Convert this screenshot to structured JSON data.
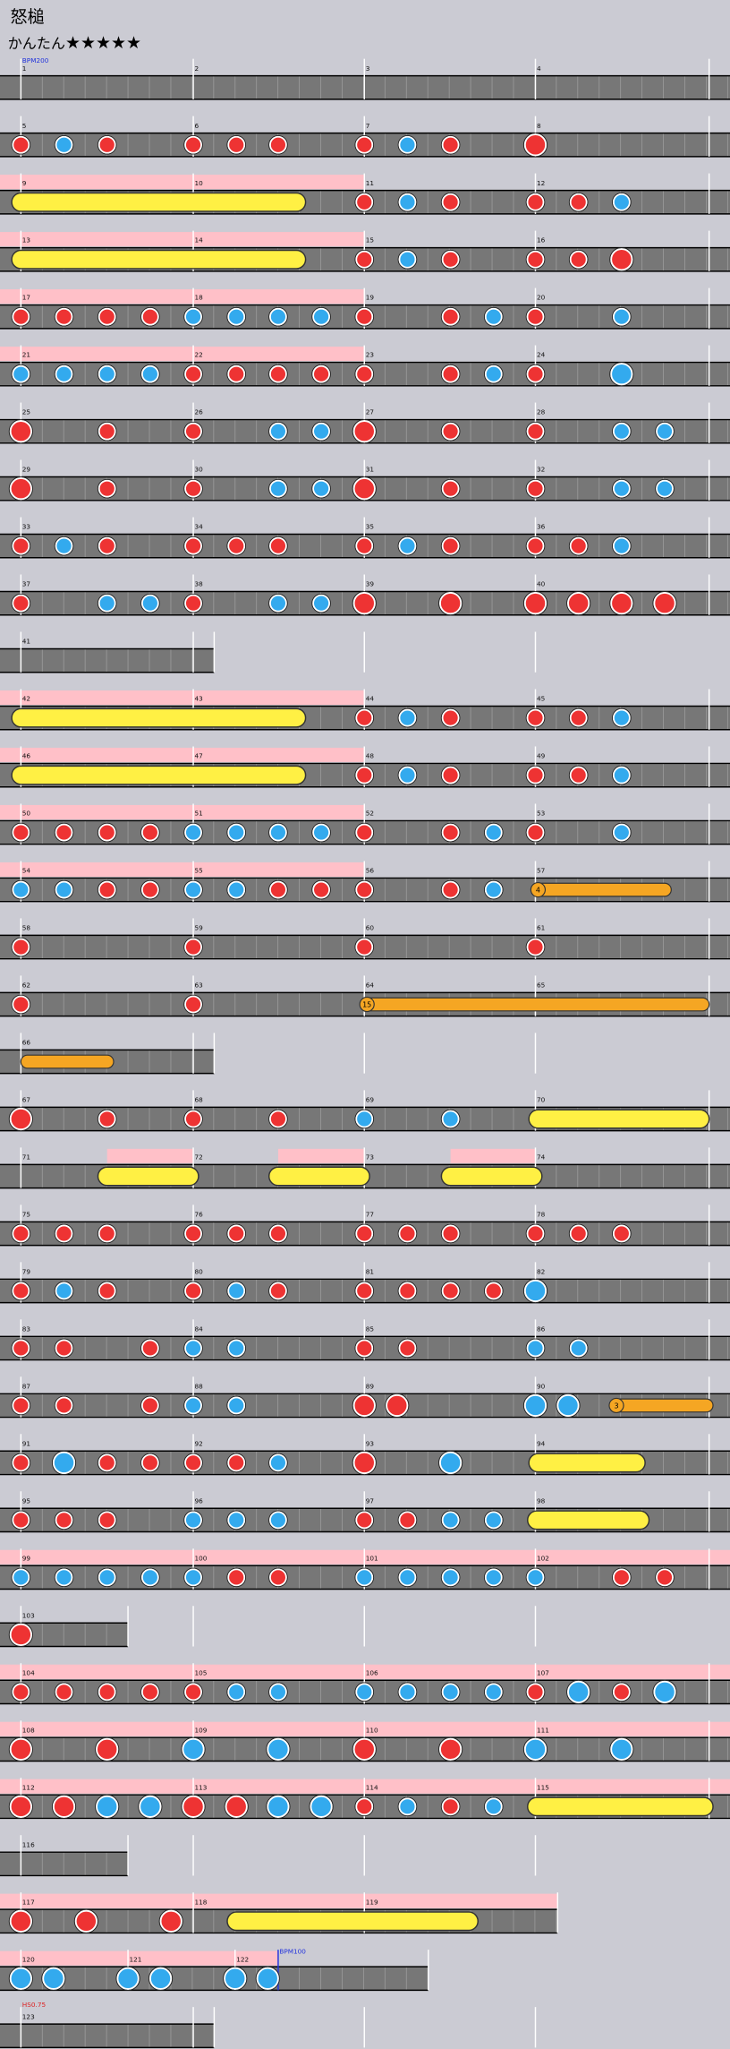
{
  "title": "怒槌",
  "difficulty": "かんたん",
  "stars": "★★★★★",
  "rows": [
    {
      "measures": [
        1,
        2,
        3,
        4
      ],
      "label": "BPM200"
    },
    {
      "measures": [
        5,
        6,
        7,
        8
      ]
    },
    {
      "measures": [
        9,
        10,
        11,
        12
      ]
    },
    {
      "measures": [
        13,
        14,
        15,
        16
      ]
    },
    {
      "measures": [
        17,
        18,
        19,
        20
      ]
    },
    {
      "measures": [
        21,
        22,
        23,
        24
      ]
    },
    {
      "measures": [
        25,
        26,
        27,
        28
      ]
    },
    {
      "measures": [
        29,
        30,
        31,
        32
      ]
    },
    {
      "measures": [
        33,
        34,
        35,
        36
      ]
    },
    {
      "measures": [
        37,
        38,
        39,
        40
      ]
    },
    {
      "measures": [
        41
      ]
    },
    {
      "measures": [
        42,
        43,
        44,
        45
      ]
    },
    {
      "measures": [
        46,
        47,
        48,
        49
      ]
    },
    {
      "measures": [
        50,
        51,
        52,
        53
      ]
    },
    {
      "measures": [
        54,
        55,
        56,
        57
      ],
      "balloon": 4
    },
    {
      "measures": [
        58,
        59,
        60,
        61
      ]
    },
    {
      "measures": [
        62,
        63,
        64,
        65
      ],
      "balloon": 15
    },
    {
      "measures": [
        66
      ]
    },
    {
      "measures": [
        67,
        68,
        69,
        70
      ]
    },
    {
      "measures": [
        71,
        72,
        73,
        74
      ]
    },
    {
      "measures": [
        75,
        76,
        77,
        78
      ]
    },
    {
      "measures": [
        79,
        80,
        81,
        82
      ]
    },
    {
      "measures": [
        83,
        84,
        85,
        86
      ]
    },
    {
      "measures": [
        87,
        88,
        89,
        90
      ],
      "balloon": 3
    },
    {
      "measures": [
        91,
        92,
        93,
        94
      ]
    },
    {
      "measures": [
        95,
        96,
        97,
        98
      ]
    },
    {
      "measures": [
        99,
        100,
        101,
        102
      ]
    },
    {
      "measures": [
        103
      ]
    },
    {
      "measures": [
        104,
        105,
        106,
        107
      ]
    },
    {
      "measures": [
        108,
        109,
        110,
        111
      ]
    },
    {
      "measures": [
        112,
        113,
        114,
        115
      ]
    },
    {
      "measures": [
        116
      ]
    },
    {
      "measures": [
        117,
        118,
        119
      ]
    },
    {
      "measures": [
        120,
        121,
        122
      ],
      "label": "BPM100"
    },
    {
      "measures": [
        123
      ],
      "label": "HS0.75"
    }
  ]
}
